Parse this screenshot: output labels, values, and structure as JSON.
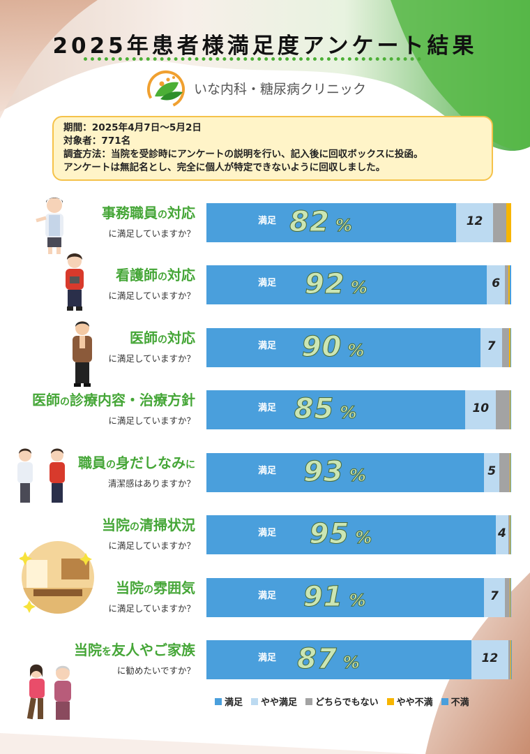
{
  "title": "2025年患者様満足度アンケート結果",
  "clinic_name": "いな内科・糖尿病クリニック",
  "info": {
    "period": "期間：2025年4月7日～5月2日",
    "target": "対象者：771名",
    "method": "調査方法：当院を受診時にアンケートの説明を行い、記入後に回収ボックスに投函。",
    "note": "アンケートは無記名とし、完全に個人が特定できないように回収しました。"
  },
  "colors": {
    "satisfied": "#4a9fdc",
    "somewhat_satisfied": "#bcdaf1",
    "neutral": "#a3a3a3",
    "somewhat_dissatisfied": "#f7b500",
    "dissatisfied": "#4a9fdc",
    "accent_green": "#45a637"
  },
  "chart_data": {
    "type": "bar",
    "orientation": "horizontal-stacked-100",
    "segment_label": "満足",
    "percent_unit": "%",
    "legend": [
      "満足",
      "やや満足",
      "どちらでもない",
      "やや不満",
      "不満"
    ],
    "legend_position": "bottom-right",
    "questions": [
      {
        "title_parts": [
          "事務職員",
          "の",
          "対応"
        ],
        "subtitle": "に満足していますか？",
        "values": [
          82,
          12,
          4.5,
          1.5,
          0
        ]
      },
      {
        "title_parts": [
          "看護師",
          "の",
          "対応"
        ],
        "subtitle": "に満足していますか？",
        "values": [
          92,
          6,
          1.2,
          0.4,
          0.4
        ]
      },
      {
        "title_parts": [
          "医師",
          "の",
          "対応"
        ],
        "subtitle": "に満足していますか？",
        "values": [
          90,
          7,
          2.4,
          0.3,
          0.3
        ]
      },
      {
        "title_parts": [
          "医師",
          "の",
          "診療内容・治療方針"
        ],
        "subtitle": "に満足していますか？",
        "values": [
          85,
          10,
          4.5,
          0.3,
          0.2
        ]
      },
      {
        "title_parts": [
          "職員",
          "の",
          "身だしなみ",
          "に"
        ],
        "subtitle": "清潔感はありますか？",
        "values": [
          93,
          5,
          3.6,
          0.2,
          0.2
        ]
      },
      {
        "title_parts": [
          "当院",
          "の",
          "清掃状況"
        ],
        "subtitle": "に満足していますか？",
        "values": [
          95,
          4,
          0.6,
          0.2,
          0.2
        ]
      },
      {
        "title_parts": [
          "当院",
          "の",
          "雰囲気"
        ],
        "subtitle": "に満足していますか？",
        "values": [
          91,
          7,
          1.5,
          0.3,
          0.2
        ]
      },
      {
        "title_parts": [
          "当院",
          "を",
          "友人やご家族"
        ],
        "subtitle": "に勧めたいですか？",
        "values": [
          87,
          12,
          0.7,
          0.2,
          0.1
        ]
      }
    ]
  }
}
